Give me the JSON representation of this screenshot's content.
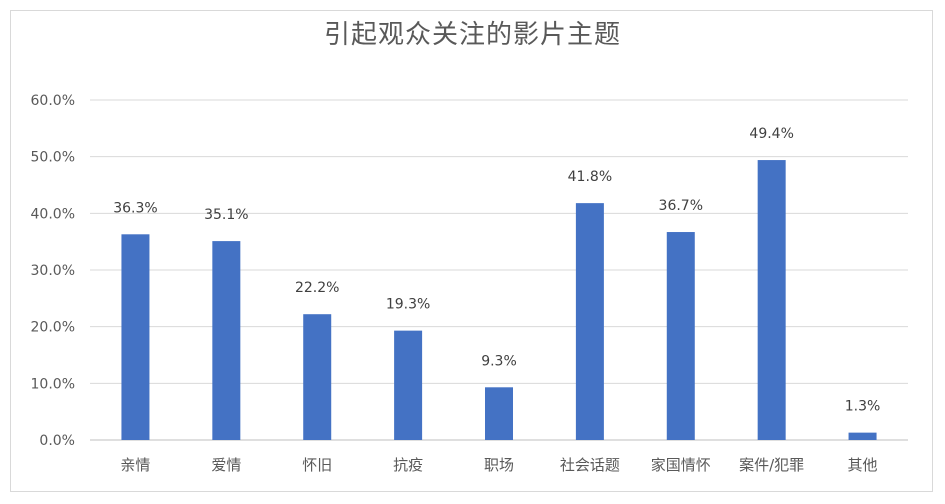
{
  "chart_data": {
    "type": "bar",
    "title": "引起观众关注的影片主题",
    "categories": [
      "亲情",
      "爱情",
      "怀旧",
      "抗疫",
      "职场",
      "社会话题",
      "家国情怀",
      "案件/犯罪",
      "其他"
    ],
    "values": [
      36.3,
      35.1,
      22.2,
      19.3,
      9.3,
      41.8,
      36.7,
      49.4,
      1.3
    ],
    "data_labels": [
      "36.3%",
      "35.1%",
      "22.2%",
      "19.3%",
      "9.3%",
      "41.8%",
      "36.7%",
      "49.4%",
      "1.3%"
    ],
    "yticks": [
      "0.0%",
      "10.0%",
      "20.0%",
      "30.0%",
      "40.0%",
      "50.0%",
      "60.0%"
    ],
    "ylim": [
      0,
      60
    ],
    "xlabel": "",
    "ylabel": "",
    "grid": true,
    "bar_color": "#4472C4"
  }
}
